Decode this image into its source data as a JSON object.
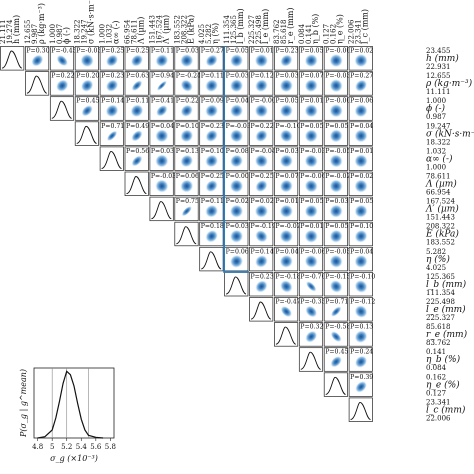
{
  "chart_data": [
    {
      "type": "heatmap",
      "subtype": "triangular pairwise posterior matrix (corner plot)",
      "parameters": [
        {
          "label": "h",
          "unit": "(mm)",
          "range": [
            "23.455",
            "22.931"
          ],
          "top_range": [
            "21.111",
            "19.274"
          ]
        },
        {
          "label": "ρ",
          "unit": "(kg·m⁻³)",
          "range": [
            "12.655",
            "11.111"
          ],
          "top_range": [
            "12.655",
            "9.987"
          ]
        },
        {
          "label": "ϕ",
          "unit": "(-)",
          "range": [
            "1.000",
            "0.987"
          ],
          "top_range": [
            "1.000",
            "0.987"
          ]
        },
        {
          "label": "σ",
          "unit": "(kN·s·m⁻⁴)",
          "range": [
            "19.247",
            "18.322"
          ],
          "top_range": [
            "18.322",
            "19.247"
          ]
        },
        {
          "label": "α∞",
          "unit": "(-)",
          "range": [
            "1.032",
            "1.000"
          ],
          "top_range": [
            "1.000",
            "1.032"
          ]
        },
        {
          "label": "Λ",
          "unit": "(µm)",
          "range": [
            "78.611",
            "66.954"
          ],
          "top_range": [
            "66.954",
            "78.611"
          ]
        },
        {
          "label": "Λ′",
          "unit": "(µm)",
          "range": [
            "167.524",
            "151.443"
          ],
          "top_range": [
            "151.443",
            "167.524"
          ]
        },
        {
          "label": "E",
          "unit": "(kPa)",
          "range": [
            "208.322",
            "183.552"
          ],
          "top_range": [
            "183.552",
            "208.322"
          ]
        },
        {
          "label": "η",
          "unit": "(%)",
          "range": [
            "5.282",
            "4.025"
          ],
          "top_range": [
            "4.025",
            "5.282"
          ]
        },
        {
          "label": "l_b",
          "unit": "(mm)",
          "range": [
            "125.365",
            "111.354"
          ],
          "top_range": [
            "111.354",
            "125.365"
          ]
        },
        {
          "label": "l_e",
          "unit": "(mm)",
          "range": [
            "225.498",
            "225.327"
          ],
          "top_range": [
            "225.327",
            "225.498"
          ]
        },
        {
          "label": "r_e",
          "unit": "(mm)",
          "range": [
            "85.618",
            "83.762"
          ],
          "top_range": [
            "83.762",
            "85.618"
          ]
        },
        {
          "label": "η_b",
          "unit": "(%)",
          "range": [
            "0.141",
            "0.084"
          ],
          "top_range": [
            "0.084",
            "0.141"
          ]
        },
        {
          "label": "η_e",
          "unit": "(%)",
          "range": [
            "0.162",
            "0.127"
          ],
          "top_range": [
            "0.127",
            "0.162"
          ]
        },
        {
          "label": "l_c",
          "unit": "(mm)",
          "range": [
            "23.341",
            "22.006"
          ],
          "top_range": [
            "22.006",
            "23.341"
          ]
        }
      ],
      "correlations": [
        [
          "P=0.30",
          "P=-0.45",
          "P=-0.03",
          "P=0.25",
          "P=0.25",
          "P=0.11",
          "P=0.03",
          "P=0.27",
          "P=0.05",
          "P=0.01",
          "P=0.23",
          "P=0.05",
          "P=-0.00",
          "P=0.02"
        ],
        [
          "P=0.22",
          "P=0.20",
          "P=0.23",
          "P=0.63",
          "P=0.94",
          "P=-0.24",
          "P=0.11",
          "P=0.03",
          "P=0.12",
          "P=0.03",
          "P=0.07",
          "P=-0.03",
          "P=0.27"
        ],
        [
          "P=0.45",
          "P=0.14",
          "P=0.11",
          "P=0.41",
          "P=0.22",
          "P=0.09",
          "P=0.04",
          "P=-0.00",
          "P=0.05",
          "P=0.01",
          "P=-0.00",
          "P=0.06"
        ],
        [
          "P=0.71",
          "P=0.49",
          "P=0.04",
          "P=0.10",
          "P=0.23",
          "P=-0.03",
          "P=0.22",
          "P=-0.10",
          "P=0.05",
          "P=0.05",
          "P=0.04"
        ],
        [
          "P=0.56",
          "P=0.03",
          "P=0.13",
          "P=0.10",
          "P=0.08",
          "P=-0.04",
          "P=0.03",
          "P=-0.03",
          "P=-0.05",
          "P=0.01"
        ],
        [
          "P=-0.03",
          "P=0.06",
          "P=0.25",
          "P=0.00",
          "P=0.25",
          "P=0.07",
          "P=-0.06",
          "P=-0.02",
          "P=0.02"
        ],
        [
          "P=0.75",
          "P=0.11",
          "P=0.02",
          "P=0.02",
          "P=0.01",
          "P=0.05",
          "P=0.03",
          "P=0.05"
        ],
        [
          "P=0.18",
          "P=0.03",
          "P=-0.19",
          "P=-0.02",
          "P=0.01",
          "P=0.05",
          "P=0.10"
        ],
        [
          "P=0.06",
          "P=0.14",
          "P=0.04",
          "P=-0.06",
          "P=-0.05",
          "P=0.04"
        ],
        [
          "P=0.23",
          "P=-0.18",
          "P=-0.70",
          "P=-0.15",
          "P=-0.10"
        ],
        [
          "P=-0.47",
          "P=-0.35",
          "P=0.71",
          "P=-0.12"
        ],
        [
          "P=0.32",
          "P=-0.58",
          "P=0.13"
        ],
        [
          "P=0.45",
          "P=0.24"
        ],
        [
          "P=0.39"
        ]
      ],
      "highlighted_region": "σ–η block"
    },
    {
      "type": "line",
      "ylabel": "P(σ_g | g^mean)",
      "xlabel": "σ_g (×10⁻³)",
      "x_ticks": [
        "4.8",
        "5",
        "5.2",
        "5.4",
        "5.6",
        "5.8"
      ],
      "x": [
        4.8,
        4.9,
        5.0,
        5.05,
        5.1,
        5.15,
        5.2,
        5.25,
        5.3,
        5.35,
        5.4,
        5.45,
        5.5,
        5.6,
        5.7
      ],
      "y": [
        0.0,
        0.02,
        0.12,
        0.3,
        0.55,
        0.82,
        1.0,
        0.95,
        0.78,
        0.52,
        0.28,
        0.12,
        0.04,
        0.01,
        0.0
      ],
      "vlines": [
        5.0,
        5.2,
        5.5
      ],
      "xlim": [
        4.75,
        5.85
      ],
      "ylim": [
        0,
        1.05
      ]
    }
  ]
}
